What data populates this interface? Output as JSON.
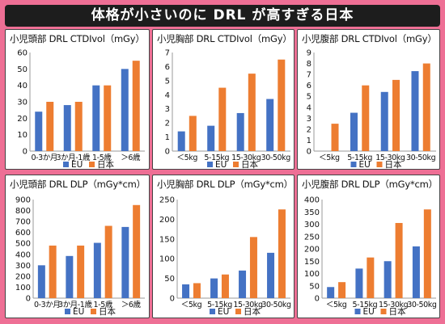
{
  "header": {
    "title": "体格が小さいのに DRL が高すぎる日本"
  },
  "colors": {
    "eu": "#4472c4",
    "japan": "#ed7d31",
    "background": "#ee6f95",
    "title_bg": "#1d1d1d"
  },
  "legend": {
    "eu": "EU",
    "japan": "日本"
  },
  "chart_data": [
    {
      "type": "bar",
      "title": "小児頭部 DRL CTDIvol（mGy）",
      "categories": [
        "0-3か月",
        "3か月-1歳",
        "1-5歳",
        "＞6歳"
      ],
      "ylim": [
        0,
        60
      ],
      "yticks": [
        "0",
        "10",
        "20",
        "30",
        "40",
        "50",
        "60"
      ],
      "series": [
        {
          "name": "EU",
          "values": [
            24,
            28,
            40,
            50
          ]
        },
        {
          "name": "日本",
          "values": [
            30,
            30,
            40,
            55
          ]
        }
      ],
      "legend": "bottom"
    },
    {
      "type": "bar",
      "title": "小児胸部 DRL CTDIvol（mGy）",
      "categories": [
        "＜5kg",
        "5-15kg",
        "15-30kg",
        "30-50kg"
      ],
      "ylim": [
        0,
        7
      ],
      "yticks": [
        "0",
        "1",
        "2",
        "3",
        "4",
        "5",
        "6",
        "7"
      ],
      "series": [
        {
          "name": "EU",
          "values": [
            1.4,
            1.8,
            2.7,
            3.7
          ]
        },
        {
          "name": "日本",
          "values": [
            2.5,
            4.5,
            5.5,
            6.5
          ]
        }
      ],
      "legend": "bottom"
    },
    {
      "type": "bar",
      "title": "小児腹部 DRL CTDIvol（mGy）",
      "categories": [
        "＜5kg",
        "5-15kg",
        "15-30kg",
        "30-50kg"
      ],
      "ylim": [
        0,
        9
      ],
      "yticks": [
        "0",
        "1",
        "2",
        "3",
        "4",
        "5",
        "6",
        "7",
        "8",
        "9"
      ],
      "series": [
        {
          "name": "EU",
          "values": [
            null,
            3.5,
            5.4,
            7.3
          ]
        },
        {
          "name": "日本",
          "values": [
            2.5,
            6,
            6.5,
            8
          ]
        }
      ],
      "legend": "bottom"
    },
    {
      "type": "bar",
      "title": "小児頭部 DRL DLP（mGy*cm）",
      "categories": [
        "0-3か月",
        "3か月-1歳",
        "1-5歳",
        "＞6歳"
      ],
      "ylim": [
        0,
        900
      ],
      "yticks": [
        "0",
        "100",
        "200",
        "300",
        "400",
        "500",
        "600",
        "700",
        "800",
        "900"
      ],
      "series": [
        {
          "name": "EU",
          "values": [
            300,
            385,
            505,
            650
          ]
        },
        {
          "name": "日本",
          "values": [
            480,
            480,
            660,
            850
          ]
        }
      ],
      "legend": "bottom"
    },
    {
      "type": "bar",
      "title": "小児胸部 DRL DLP（mGy*cm）",
      "categories": [
        "＜5kg",
        "5-15kg",
        "15-30kg",
        "30-50kg"
      ],
      "ylim": [
        0,
        250
      ],
      "yticks": [
        "0",
        "50",
        "100",
        "150",
        "200",
        "250"
      ],
      "series": [
        {
          "name": "EU",
          "values": [
            35,
            50,
            70,
            115
          ]
        },
        {
          "name": "日本",
          "values": [
            38,
            60,
            155,
            225
          ]
        }
      ],
      "legend": "bottom"
    },
    {
      "type": "bar",
      "title": "小児腹部 DRL DLP（mGy*cm）",
      "categories": [
        "＜5kg",
        "5-15kg",
        "15-30kg",
        "30-50kg"
      ],
      "ylim": [
        0,
        400
      ],
      "yticks": [
        "0",
        "50",
        "100",
        "150",
        "200",
        "250",
        "300",
        "350",
        "400"
      ],
      "series": [
        {
          "name": "EU",
          "values": [
            45,
            120,
            150,
            210
          ]
        },
        {
          "name": "日本",
          "values": [
            65,
            165,
            305,
            360
          ]
        }
      ],
      "legend": "bottom"
    }
  ]
}
